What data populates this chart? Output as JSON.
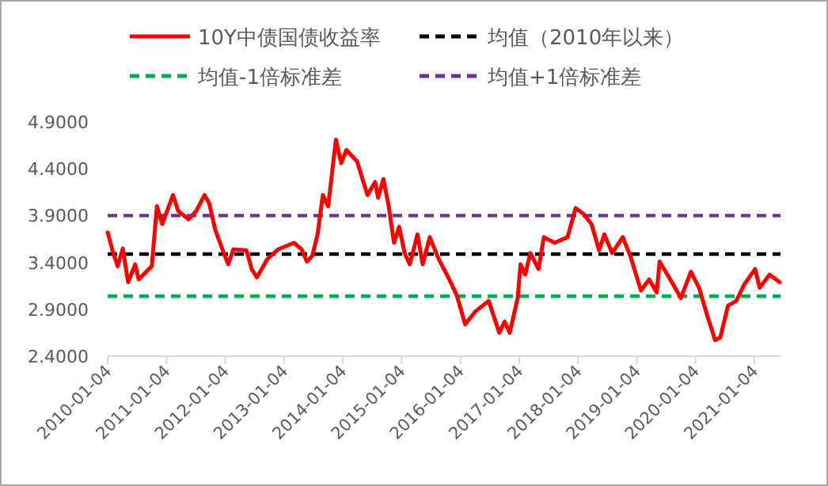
{
  "chart_data": {
    "type": "line",
    "legend": "top",
    "grid": false,
    "xlim": [
      "2010-01-04",
      "2021-06-15"
    ],
    "xticks": [
      "2010-01-04",
      "2011-01-04",
      "2012-01-04",
      "2013-01-04",
      "2014-01-04",
      "2015-01-04",
      "2016-01-04",
      "2017-01-04",
      "2018-01-04",
      "2019-01-04",
      "2020-01-04",
      "2021-01-04"
    ],
    "ylim": [
      2.4,
      4.9
    ],
    "yticks": [
      {
        "value": 2.4,
        "label": "2.4000"
      },
      {
        "value": 2.9,
        "label": "2.9000"
      },
      {
        "value": 3.4,
        "label": "3.4000"
      },
      {
        "value": 3.9,
        "label": "3.9000"
      },
      {
        "value": 4.4,
        "label": "4.4000"
      },
      {
        "value": 4.9,
        "label": "4.9000"
      }
    ],
    "x": [
      "2010-01-04",
      "2010-02-03",
      "2010-03-07",
      "2010-04-08",
      "2010-05-11",
      "2010-06-24",
      "2010-07-16",
      "2010-10-05",
      "2010-11-06",
      "2010-12-09",
      "2011-02-14",
      "2011-03-18",
      "2011-05-22",
      "2011-07-09",
      "2011-08-29",
      "2011-09-27",
      "2011-11-03",
      "2011-12-20",
      "2012-01-23",
      "2012-02-24",
      "2012-05-15",
      "2012-06-17",
      "2012-07-19",
      "2012-09-24",
      "2012-11-28",
      "2013-03-07",
      "2013-04-23",
      "2013-05-26",
      "2013-06-28",
      "2013-07-31",
      "2013-09-02",
      "2013-10-05",
      "2013-11-22",
      "2013-12-25",
      "2014-01-26",
      "2014-04-02",
      "2014-06-06",
      "2014-07-24",
      "2014-08-11",
      "2014-09-13",
      "2014-10-16",
      "2014-11-18",
      "2014-12-20",
      "2015-01-23",
      "2015-02-24",
      "2015-04-13",
      "2015-05-15",
      "2015-06-28",
      "2015-08-22",
      "2015-10-27",
      "2015-12-13",
      "2016-02-03",
      "2016-04-08",
      "2016-06-28",
      "2016-09-02",
      "2016-10-05",
      "2016-11-06",
      "2016-12-25",
      "2017-01-12",
      "2017-02-10",
      "2017-03-14",
      "2017-05-04",
      "2017-06-06",
      "2017-08-11",
      "2017-10-31",
      "2017-12-20",
      "2018-02-06",
      "2018-03-29",
      "2018-05-15",
      "2018-06-17",
      "2018-08-04",
      "2018-10-09",
      "2018-11-25",
      "2019-01-30",
      "2019-03-22",
      "2019-05-08",
      "2019-05-26",
      "2019-07-31",
      "2019-10-05",
      "2019-12-06",
      "2020-01-26",
      "2020-03-14",
      "2020-05-05",
      "2020-06-06",
      "2020-07-24",
      "2020-09-13",
      "2020-10-31",
      "2021-01-08",
      "2021-02-06",
      "2021-04-08",
      "2021-06-10"
    ],
    "series": [
      {
        "name": "10Y中债国债收益率",
        "color": "#ff0000",
        "values": [
          3.72,
          3.53,
          3.36,
          3.55,
          3.19,
          3.38,
          3.22,
          3.36,
          4.0,
          3.81,
          4.12,
          3.95,
          3.86,
          3.95,
          4.12,
          4.03,
          3.75,
          3.53,
          3.38,
          3.54,
          3.53,
          3.33,
          3.24,
          3.44,
          3.54,
          3.61,
          3.54,
          3.41,
          3.47,
          3.7,
          4.12,
          4.0,
          4.71,
          4.46,
          4.6,
          4.48,
          4.12,
          4.26,
          4.09,
          4.29,
          4.0,
          3.61,
          3.78,
          3.5,
          3.38,
          3.7,
          3.38,
          3.67,
          3.44,
          3.22,
          3.05,
          2.74,
          2.88,
          2.99,
          2.65,
          2.77,
          2.65,
          3.02,
          3.38,
          3.27,
          3.5,
          3.33,
          3.67,
          3.61,
          3.67,
          3.98,
          3.92,
          3.81,
          3.53,
          3.7,
          3.5,
          3.67,
          3.47,
          3.1,
          3.22,
          3.08,
          3.41,
          3.22,
          3.02,
          3.3,
          3.13,
          2.85,
          2.57,
          2.6,
          2.94,
          2.99,
          3.16,
          3.33,
          3.13,
          3.27,
          3.19
        ]
      }
    ],
    "ref_lines": [
      {
        "axis": "y",
        "value": 3.49,
        "label": "均值（2010年以来）",
        "color": "#000000",
        "line_style": "dashed"
      },
      {
        "axis": "y",
        "value": 3.04,
        "label": "均值-1倍标准差",
        "color": "#00b050",
        "line_style": "dashed"
      },
      {
        "axis": "y",
        "value": 3.9,
        "label": "均值+1倍标准差",
        "color": "#7030a0",
        "line_style": "dashed"
      }
    ]
  }
}
